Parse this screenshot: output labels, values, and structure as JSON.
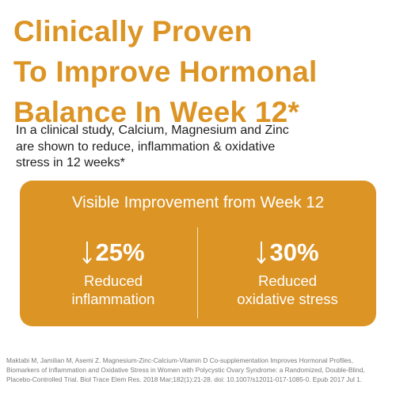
{
  "headline": {
    "line1": "Clinically Proven",
    "line2": "To Improve Hormonal",
    "line3": "Balance In Week 12*"
  },
  "intro": {
    "line1": "In a clinical study, Calcium, Magnesium and  Zinc",
    "line2": "are shown to reduce, inflammation & oxidative",
    "line3": "stress in 12 weeks*"
  },
  "panel": {
    "title": "Visible Improvement from Week 12",
    "stats": [
      {
        "value": "25%",
        "label_line1": "Reduced",
        "label_line2": "inflammation",
        "icon": "down-arrow-icon"
      },
      {
        "value": "30%",
        "label_line1": "Reduced",
        "label_line2": "oxidative stress",
        "icon": "down-arrow-icon"
      }
    ]
  },
  "citation": {
    "line1": "Maktabi M, Jamilian M, Asemi Z. Magnesium-Zinc-Calcium-Vitamin D Co-supplementation Improves Hormonal Profiles,",
    "line2": "Biomarkers of Inflammation and Oxidative Stress in Women with Polycystic Ovary Syndrome: a Randomized, Double-Blind,",
    "line3": "Placebo-Controlled Trial. Biol Trace Elem Res. 2018 Mar;182(1):21-28. doi: 10.1007/s12011-017-1085-0. Epub 2017 Jul 1."
  },
  "colors": {
    "accent": "#dc9424",
    "panel_text": "#ffffff",
    "body_text": "#1f1f1f",
    "citation_text": "#7a7a7a"
  }
}
